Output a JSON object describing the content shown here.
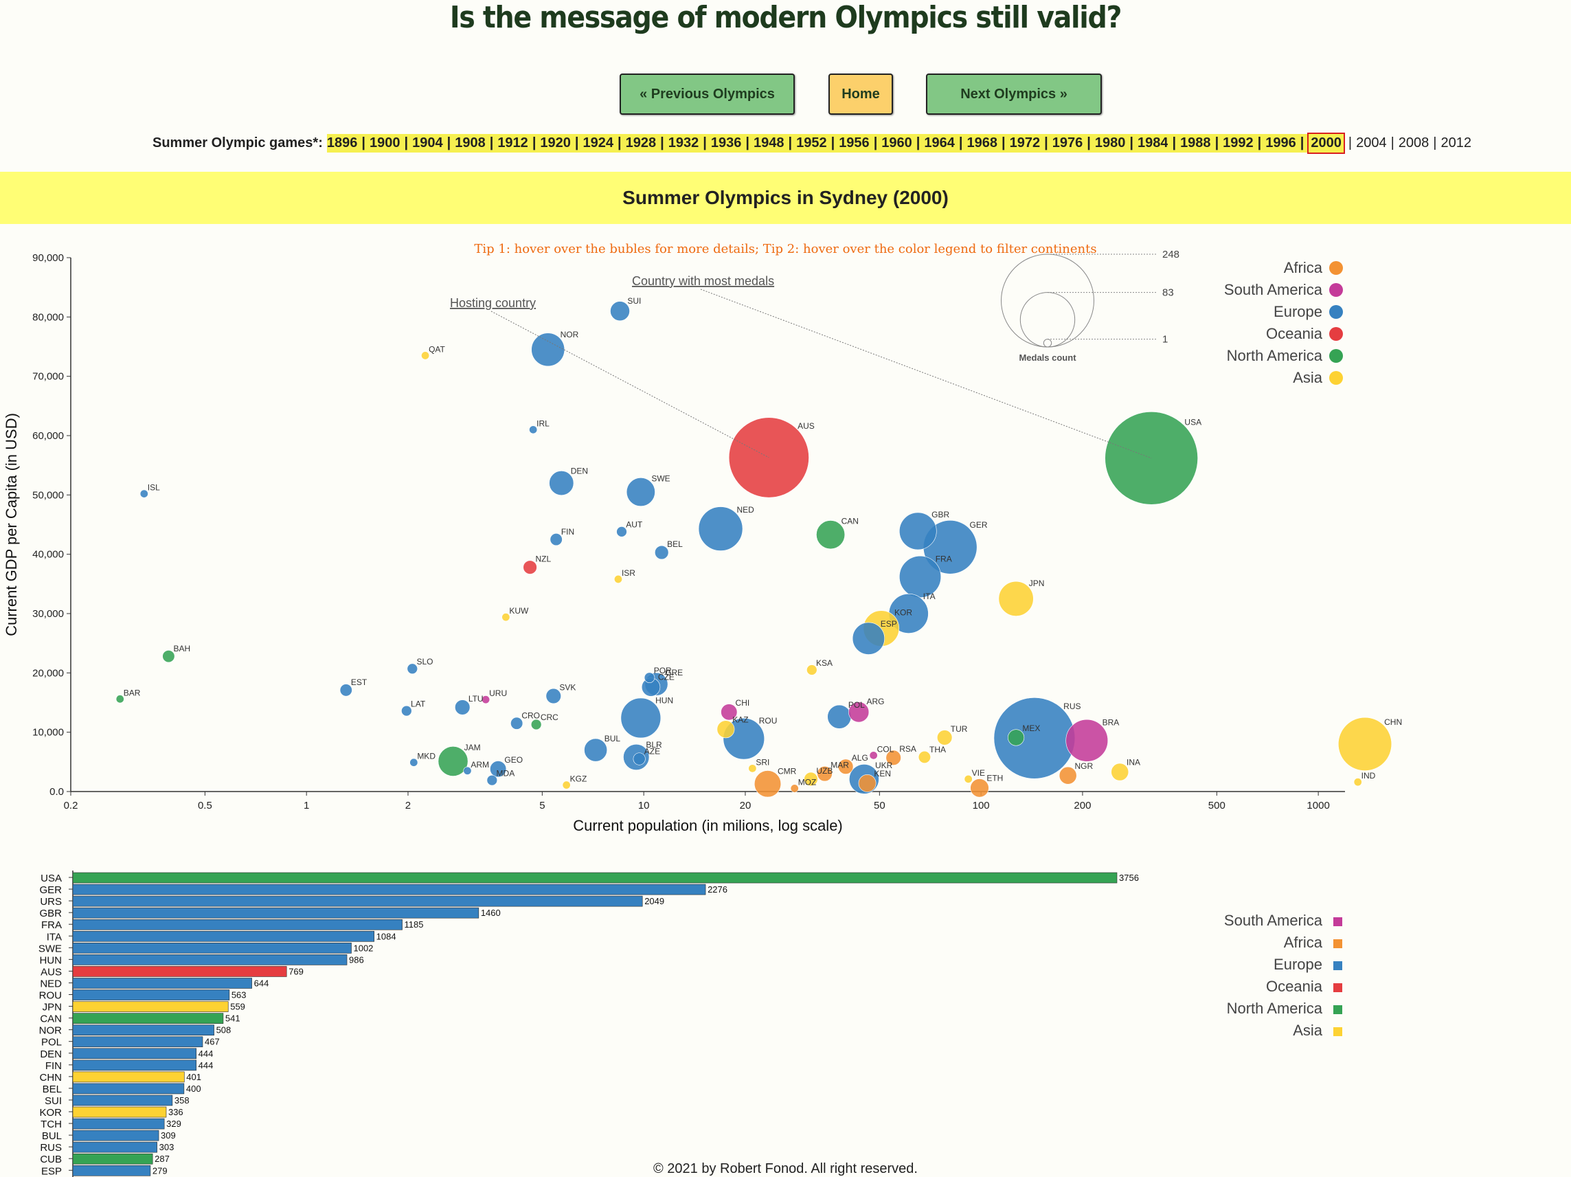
{
  "page": {
    "title": "Is the message of modern Olympics still valid?",
    "prev_label": "« Previous Olympics",
    "home_label": "Home",
    "next_label": "Next Olympics »",
    "games_label": "Summer Olympic games*:",
    "games_years": [
      "1896",
      "1900",
      "1904",
      "1908",
      "1912",
      "1920",
      "1924",
      "1928",
      "1932",
      "1936",
      "1948",
      "1952",
      "1956",
      "1960",
      "1964",
      "1968",
      "1972",
      "1976",
      "1980",
      "1984",
      "1988",
      "1992",
      "1996",
      "2000",
      "2004",
      "2008",
      "2012"
    ],
    "selected_year": "2000",
    "banner": "Summer Olympics in Sydney (2000)",
    "tips": "Tip 1: hover over the bubles for more details; Tip 2: hover over the color legend to filter continents",
    "footer": "© 2021 by Robert Fonod. All right reserved."
  },
  "colors": {
    "Africa": "#f39233",
    "South America": "#c43b99",
    "Europe": "#3681c0",
    "Oceania": "#e53d40",
    "North America": "#35a354",
    "Asia": "#fdd233"
  },
  "chart_data": [
    {
      "type": "scatter",
      "xlabel": "Current population (in milions, log scale)",
      "ylabel": "Current GDP per Capita (in USD)",
      "xscale": "log",
      "xlim": [
        0.2,
        1200
      ],
      "ylim": [
        0,
        90000
      ],
      "xticks": [
        0.2,
        0.5,
        1,
        2,
        5,
        10,
        20,
        50,
        100,
        200,
        500,
        1000
      ],
      "xtick_labels": [
        "0.2",
        "0.5",
        "1",
        "2",
        "5",
        "10",
        "20",
        "50",
        "100",
        "200",
        "500",
        "1000"
      ],
      "yticks": [
        0,
        10000,
        20000,
        30000,
        40000,
        50000,
        60000,
        70000,
        80000,
        90000
      ],
      "ytick_labels": [
        "0.0",
        "10,000",
        "20,000",
        "30,000",
        "40,000",
        "50,000",
        "60,000",
        "70,000",
        "80,000",
        "90,000"
      ],
      "size_legend": {
        "title": "Medals count",
        "values": [
          248,
          83,
          1
        ],
        "labels": [
          "248",
          "83",
          "1"
        ]
      },
      "annotations": [
        "Hosting country",
        "Country with most medals"
      ],
      "annotation_targets": [
        "AUS",
        "USA"
      ],
      "legend": [
        "Africa",
        "South America",
        "Europe",
        "Oceania",
        "North America",
        "Asia"
      ],
      "legend_position": "top-right",
      "points": [
        {
          "code": "SUI",
          "pop": 8.5,
          "gdp": 81000,
          "medals": 9,
          "cont": "Europe"
        },
        {
          "code": "NOR",
          "pop": 5.2,
          "gdp": 74500,
          "medals": 29,
          "cont": "Europe"
        },
        {
          "code": "QAT",
          "pop": 2.25,
          "gdp": 73500,
          "medals": 1,
          "cont": "Asia"
        },
        {
          "code": "IRL",
          "pop": 4.7,
          "gdp": 61000,
          "medals": 1,
          "cont": "Europe"
        },
        {
          "code": "AUS",
          "pop": 23.5,
          "gdp": 56300,
          "medals": 183,
          "cont": "Oceania"
        },
        {
          "code": "USA",
          "pop": 320,
          "gdp": 56200,
          "medals": 248,
          "cont": "North America"
        },
        {
          "code": "ISL",
          "pop": 0.33,
          "gdp": 50200,
          "medals": 1,
          "cont": "Europe"
        },
        {
          "code": "DEN",
          "pop": 5.7,
          "gdp": 52000,
          "medals": 15,
          "cont": "Europe"
        },
        {
          "code": "SWE",
          "pop": 9.8,
          "gdp": 50500,
          "medals": 21,
          "cont": "Europe"
        },
        {
          "code": "NED",
          "pop": 16.9,
          "gdp": 44300,
          "medals": 53,
          "cont": "Europe"
        },
        {
          "code": "CAN",
          "pop": 35.8,
          "gdp": 43300,
          "medals": 21,
          "cont": "North America"
        },
        {
          "code": "GBR",
          "pop": 65,
          "gdp": 43900,
          "medals": 37,
          "cont": "Europe"
        },
        {
          "code": "GER",
          "pop": 81,
          "gdp": 41200,
          "medals": 80,
          "cont": "Europe"
        },
        {
          "code": "FIN",
          "pop": 5.5,
          "gdp": 42500,
          "medals": 3,
          "cont": "Europe"
        },
        {
          "code": "AUT",
          "pop": 8.6,
          "gdp": 43800,
          "medals": 2,
          "cont": "Europe"
        },
        {
          "code": "BEL",
          "pop": 11.3,
          "gdp": 40300,
          "medals": 4,
          "cont": "Europe"
        },
        {
          "code": "NZL",
          "pop": 4.6,
          "gdp": 37800,
          "medals": 4,
          "cont": "Oceania"
        },
        {
          "code": "ISR",
          "pop": 8.4,
          "gdp": 35800,
          "medals": 1,
          "cont": "Asia"
        },
        {
          "code": "FRA",
          "pop": 66,
          "gdp": 36200,
          "medals": 47,
          "cont": "Europe"
        },
        {
          "code": "JPN",
          "pop": 127,
          "gdp": 32500,
          "medals": 32,
          "cont": "Asia"
        },
        {
          "code": "ITA",
          "pop": 61,
          "gdp": 30000,
          "medals": 42,
          "cont": "Europe"
        },
        {
          "code": "KOR",
          "pop": 50.6,
          "gdp": 27500,
          "medals": 34,
          "cont": "Asia"
        },
        {
          "code": "ESP",
          "pop": 46.4,
          "gdp": 25800,
          "medals": 27,
          "cont": "Europe"
        },
        {
          "code": "KUW",
          "pop": 3.9,
          "gdp": 29400,
          "medals": 1,
          "cont": "Asia"
        },
        {
          "code": "BAH",
          "pop": 0.39,
          "gdp": 22800,
          "medals": 3,
          "cont": "North America"
        },
        {
          "code": "SLO",
          "pop": 2.06,
          "gdp": 20700,
          "medals": 2,
          "cont": "Europe"
        },
        {
          "code": "KSA",
          "pop": 31.5,
          "gdp": 20500,
          "medals": 2,
          "cont": "Asia"
        },
        {
          "code": "POR",
          "pop": 10.4,
          "gdp": 19200,
          "medals": 2,
          "cont": "Europe"
        },
        {
          "code": "GRE",
          "pop": 10.9,
          "gdp": 18100,
          "medals": 13,
          "cont": "Europe"
        },
        {
          "code": "CZE",
          "pop": 10.5,
          "gdp": 17600,
          "medals": 8,
          "cont": "Europe"
        },
        {
          "code": "EST",
          "pop": 1.31,
          "gdp": 17100,
          "medals": 3,
          "cont": "Europe"
        },
        {
          "code": "SVK",
          "pop": 5.4,
          "gdp": 16100,
          "medals": 5,
          "cont": "Europe"
        },
        {
          "code": "BAR",
          "pop": 0.28,
          "gdp": 15600,
          "medals": 1,
          "cont": "North America"
        },
        {
          "code": "LTU",
          "pop": 2.9,
          "gdp": 14200,
          "medals": 5,
          "cont": "Europe"
        },
        {
          "code": "URU",
          "pop": 3.4,
          "gdp": 15500,
          "medals": 1,
          "cont": "South America"
        },
        {
          "code": "LAT",
          "pop": 1.98,
          "gdp": 13600,
          "medals": 2,
          "cont": "Europe"
        },
        {
          "code": "HUN",
          "pop": 9.8,
          "gdp": 12400,
          "medals": 43,
          "cont": "Europe"
        },
        {
          "code": "CRO",
          "pop": 4.2,
          "gdp": 11500,
          "medals": 3,
          "cont": "Europe"
        },
        {
          "code": "CRC",
          "pop": 4.8,
          "gdp": 11300,
          "medals": 2,
          "cont": "North America"
        },
        {
          "code": "CHI",
          "pop": 17.9,
          "gdp": 13400,
          "medals": 6,
          "cont": "South America"
        },
        {
          "code": "POL",
          "pop": 38,
          "gdp": 12600,
          "medals": 14,
          "cont": "Europe"
        },
        {
          "code": "ARG",
          "pop": 43.4,
          "gdp": 13400,
          "medals": 10,
          "cont": "South America"
        },
        {
          "code": "KAZ",
          "pop": 17.5,
          "gdp": 10500,
          "medals": 7,
          "cont": "Asia"
        },
        {
          "code": "ROU",
          "pop": 19.8,
          "gdp": 8900,
          "medals": 46,
          "cont": "Europe"
        },
        {
          "code": "TUR",
          "pop": 78,
          "gdp": 9100,
          "medals": 5,
          "cont": "Asia"
        },
        {
          "code": "RUS",
          "pop": 144,
          "gdp": 9000,
          "medals": 188,
          "cont": "Europe"
        },
        {
          "code": "MEX",
          "pop": 127,
          "gdp": 9100,
          "medals": 6,
          "cont": "North America"
        },
        {
          "code": "BRA",
          "pop": 206,
          "gdp": 8600,
          "medals": 48,
          "cont": "South America"
        },
        {
          "code": "CHN",
          "pop": 1375,
          "gdp": 8000,
          "medals": 79,
          "cont": "Asia"
        },
        {
          "code": "BUL",
          "pop": 7.2,
          "gdp": 7000,
          "medals": 13,
          "cont": "Europe"
        },
        {
          "code": "BLR",
          "pop": 9.5,
          "gdp": 5800,
          "medals": 17,
          "cont": "Europe"
        },
        {
          "code": "AZE",
          "pop": 9.7,
          "gdp": 5500,
          "medals": 3,
          "cont": "Europe"
        },
        {
          "code": "JAM",
          "pop": 2.72,
          "gdp": 5100,
          "medals": 23,
          "cont": "North America"
        },
        {
          "code": "MKD",
          "pop": 2.08,
          "gdp": 4900,
          "medals": 1,
          "cont": "Europe"
        },
        {
          "code": "GEO",
          "pop": 3.7,
          "gdp": 3800,
          "medals": 6,
          "cont": "Europe"
        },
        {
          "code": "ARM",
          "pop": 3.0,
          "gdp": 3500,
          "medals": 1,
          "cont": "Europe"
        },
        {
          "code": "MDA",
          "pop": 3.55,
          "gdp": 1900,
          "medals": 2,
          "cont": "Europe"
        },
        {
          "code": "KGZ",
          "pop": 5.9,
          "gdp": 1100,
          "medals": 1,
          "cont": "Asia"
        },
        {
          "code": "SRI",
          "pop": 21,
          "gdp": 3900,
          "medals": 1,
          "cont": "Asia"
        },
        {
          "code": "CMR",
          "pop": 23.3,
          "gdp": 1300,
          "medals": 18,
          "cont": "Africa"
        },
        {
          "code": "MOZ",
          "pop": 28,
          "gdp": 530,
          "medals": 1,
          "cont": "Africa"
        },
        {
          "code": "UZB",
          "pop": 31.3,
          "gdp": 2100,
          "medals": 4,
          "cont": "Asia"
        },
        {
          "code": "MAR",
          "pop": 34.4,
          "gdp": 3000,
          "medals": 5,
          "cont": "Africa"
        },
        {
          "code": "ALG",
          "pop": 39.7,
          "gdp": 4200,
          "medals": 5,
          "cont": "Africa"
        },
        {
          "code": "KEN",
          "pop": 46,
          "gdp": 1400,
          "medals": 7,
          "cont": "Africa"
        },
        {
          "code": "UKR",
          "pop": 45,
          "gdp": 2100,
          "medals": 23,
          "cont": "Europe"
        },
        {
          "code": "COL",
          "pop": 48,
          "gdp": 6100,
          "medals": 1,
          "cont": "South America"
        },
        {
          "code": "RSA",
          "pop": 55,
          "gdp": 5700,
          "medals": 5,
          "cont": "Africa"
        },
        {
          "code": "THA",
          "pop": 68,
          "gdp": 5800,
          "medals": 3,
          "cont": "Asia"
        },
        {
          "code": "VIE",
          "pop": 91.7,
          "gdp": 2100,
          "medals": 1,
          "cont": "Asia"
        },
        {
          "code": "ETH",
          "pop": 99,
          "gdp": 600,
          "medals": 8,
          "cont": "Africa"
        },
        {
          "code": "NGR",
          "pop": 181,
          "gdp": 2700,
          "medals": 7,
          "cont": "Africa"
        },
        {
          "code": "INA",
          "pop": 258,
          "gdp": 3300,
          "medals": 7,
          "cont": "Asia"
        },
        {
          "code": "IND",
          "pop": 1310,
          "gdp": 1600,
          "medals": 1,
          "cont": "Asia"
        }
      ]
    },
    {
      "type": "bar",
      "orientation": "horizontal",
      "legend": [
        "South America",
        "Africa",
        "Europe",
        "Oceania",
        "North America",
        "Asia"
      ],
      "legend_position": "right",
      "categories": [
        "USA",
        "GER",
        "URS",
        "GBR",
        "FRA",
        "ITA",
        "SWE",
        "HUN",
        "AUS",
        "NED",
        "ROU",
        "JPN",
        "CAN",
        "NOR",
        "POL",
        "DEN",
        "FIN",
        "CHN",
        "BEL",
        "SUI",
        "KOR",
        "TCH",
        "BUL",
        "RUS",
        "CUB",
        "ESP"
      ],
      "values": [
        3756,
        2276,
        2049,
        1460,
        1185,
        1084,
        1002,
        986,
        769,
        644,
        563,
        559,
        541,
        508,
        467,
        444,
        444,
        401,
        400,
        358,
        336,
        329,
        309,
        303,
        287,
        279
      ],
      "continents": [
        "North America",
        "Europe",
        "Europe",
        "Europe",
        "Europe",
        "Europe",
        "Europe",
        "Europe",
        "Oceania",
        "Europe",
        "Europe",
        "Asia",
        "North America",
        "Europe",
        "Europe",
        "Europe",
        "Europe",
        "Asia",
        "Europe",
        "Europe",
        "Asia",
        "Europe",
        "Europe",
        "Europe",
        "North America",
        "Europe"
      ]
    }
  ]
}
